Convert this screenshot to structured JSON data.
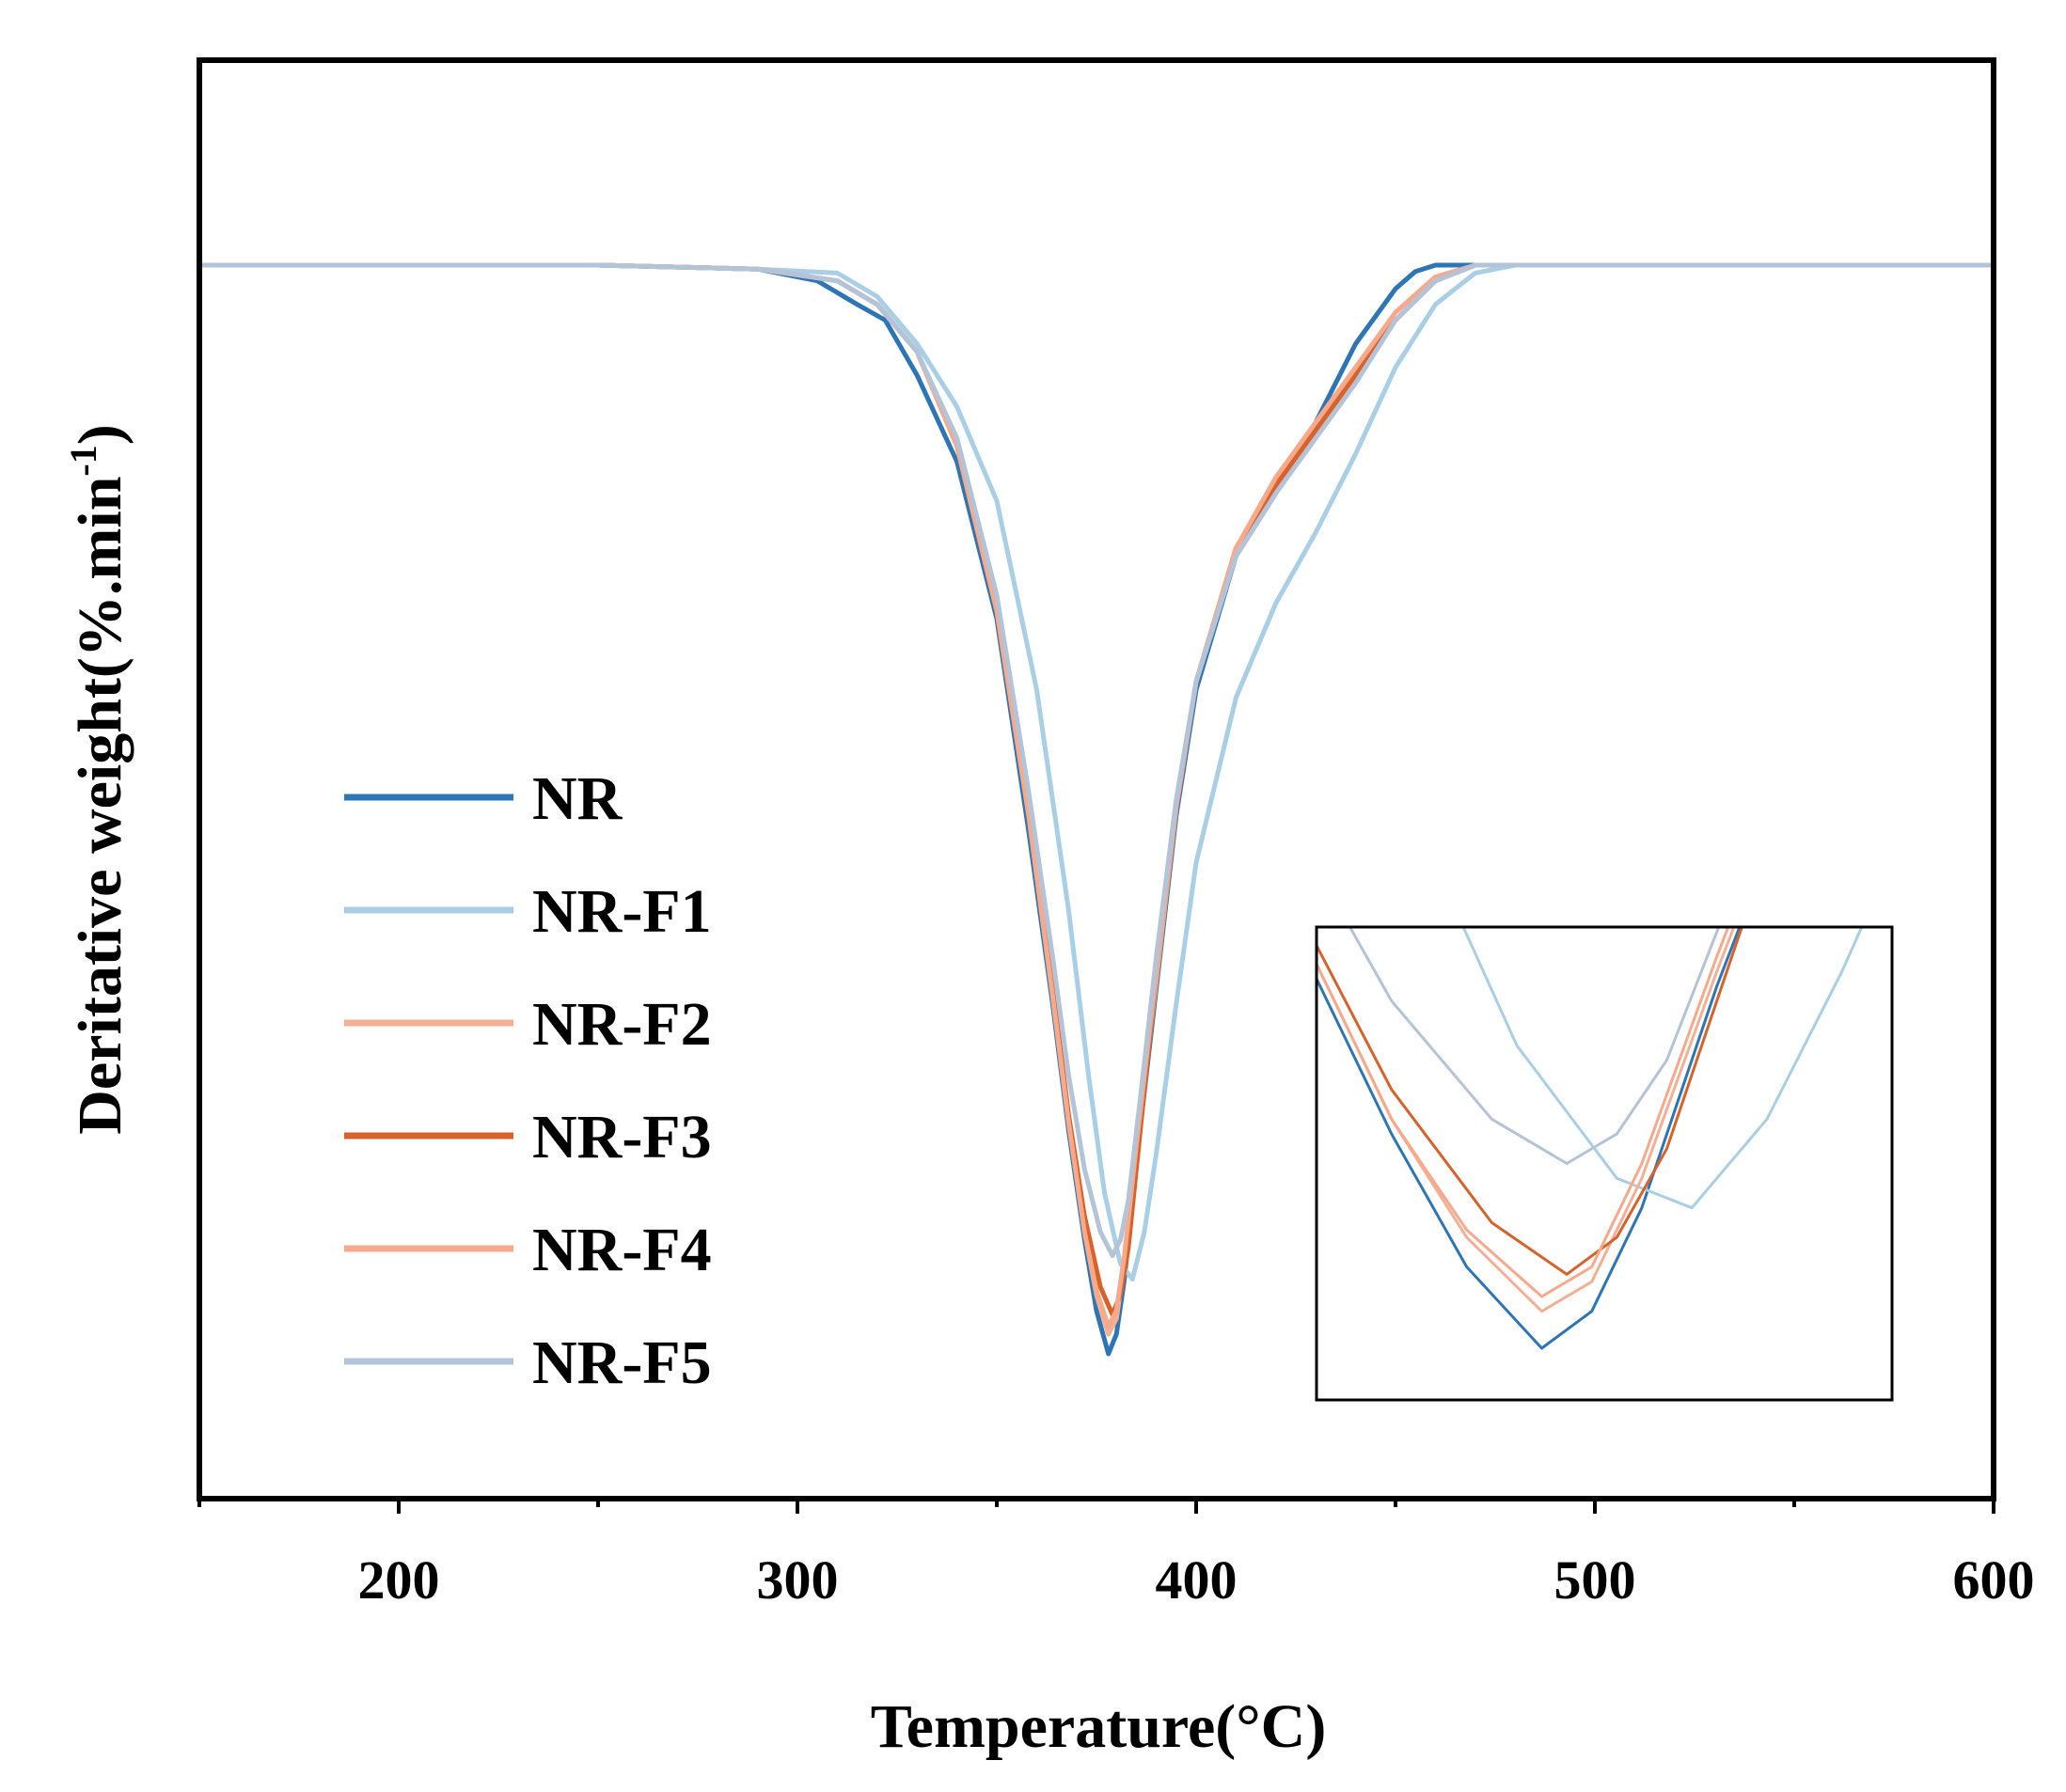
{
  "chart_data": {
    "type": "line",
    "xlabel": "Temperature(°C)",
    "ylabel_main": "Deritative weight(%.min",
    "ylabel_sup": "-1",
    "ylabel_close": ")",
    "xlim": [
      150,
      600
    ],
    "ylim": [
      -14,
      1.6
    ],
    "y_ticks_visible": false,
    "x_ticks": [
      200,
      300,
      400,
      500,
      600
    ],
    "x_tick_labels": [
      "200",
      "300",
      "400",
      "500",
      "600"
    ],
    "legend_position": "center-left",
    "inset": {
      "description_position": "bottom-right",
      "xlim": [
        369,
        392
      ],
      "ylim": [
        -14.2,
        -11.0
      ]
    },
    "series": [
      {
        "name": "NR",
        "color": "#2e75b6",
        "x": [
          150,
          200,
          250,
          290,
          305,
          315,
          322,
          330,
          340,
          350,
          358,
          364,
          368,
          372,
          375,
          378,
          380,
          382,
          385,
          390,
          395,
          400,
          410,
          420,
          430,
          440,
          450,
          455,
          460,
          470,
          480,
          500,
          550,
          600
        ],
        "y": [
          0,
          0,
          0,
          -0.05,
          -0.2,
          -0.5,
          -0.7,
          -1.4,
          -2.5,
          -4.5,
          -7.2,
          -9.4,
          -11.0,
          -12.4,
          -13.3,
          -13.85,
          -13.6,
          -12.9,
          -11.4,
          -9.2,
          -7.0,
          -5.4,
          -3.7,
          -2.9,
          -2.0,
          -1.0,
          -0.3,
          -0.08,
          0,
          0,
          0,
          0,
          0,
          0
        ]
      },
      {
        "name": "NR-F1",
        "color": "#a9cfe6",
        "x": [
          150,
          200,
          250,
          290,
          310,
          320,
          330,
          340,
          350,
          360,
          368,
          373,
          377,
          381,
          384,
          387,
          390,
          395,
          400,
          410,
          420,
          430,
          440,
          450,
          460,
          470,
          480,
          500,
          550,
          600
        ],
        "y": [
          0,
          0,
          0,
          -0.05,
          -0.1,
          -0.4,
          -1.0,
          -1.8,
          -3.0,
          -5.4,
          -8.2,
          -10.3,
          -11.8,
          -12.7,
          -12.9,
          -12.3,
          -11.3,
          -9.4,
          -7.6,
          -5.5,
          -4.3,
          -3.4,
          -2.4,
          -1.3,
          -0.5,
          -0.1,
          0,
          0,
          0,
          0
        ]
      },
      {
        "name": "NR-F2",
        "color": "#f4b094",
        "x": [
          150,
          200,
          250,
          290,
          310,
          320,
          330,
          340,
          350,
          358,
          364,
          368,
          372,
          375,
          378,
          380,
          382,
          385,
          390,
          395,
          400,
          410,
          420,
          430,
          440,
          450,
          460,
          470,
          480,
          500,
          550,
          600
        ],
        "y": [
          0,
          0,
          0,
          -0.05,
          -0.2,
          -0.5,
          -1.1,
          -2.3,
          -4.4,
          -7.0,
          -9.3,
          -10.9,
          -12.3,
          -13.1,
          -13.6,
          -13.4,
          -12.7,
          -11.3,
          -9.1,
          -6.9,
          -5.3,
          -3.6,
          -2.8,
          -2.1,
          -1.4,
          -0.7,
          -0.2,
          0,
          0,
          0,
          0,
          0
        ]
      },
      {
        "name": "NR-F3",
        "color": "#d9622b",
        "x": [
          150,
          200,
          250,
          290,
          310,
          320,
          330,
          340,
          350,
          358,
          364,
          368,
          372,
          376,
          379,
          381,
          383,
          386,
          390,
          395,
          400,
          410,
          420,
          430,
          440,
          450,
          460,
          470,
          480,
          500,
          550,
          600
        ],
        "y": [
          0,
          0,
          0,
          -0.05,
          -0.2,
          -0.5,
          -1.1,
          -2.3,
          -4.4,
          -7.0,
          -9.2,
          -10.8,
          -12.1,
          -13.0,
          -13.35,
          -13.1,
          -12.5,
          -11.0,
          -9.0,
          -6.9,
          -5.3,
          -3.6,
          -2.8,
          -2.1,
          -1.4,
          -0.7,
          -0.2,
          0,
          0,
          0,
          0,
          0
        ]
      },
      {
        "name": "NR-F4",
        "color": "#f7a98a",
        "x": [
          150,
          200,
          250,
          290,
          310,
          320,
          330,
          340,
          350,
          358,
          364,
          368,
          372,
          375,
          378,
          380,
          382,
          385,
          390,
          395,
          400,
          410,
          420,
          430,
          440,
          450,
          460,
          470,
          480,
          500,
          550,
          600
        ],
        "y": [
          0,
          0,
          0,
          -0.05,
          -0.2,
          -0.5,
          -1.1,
          -2.3,
          -4.4,
          -7.0,
          -9.3,
          -10.9,
          -12.3,
          -13.05,
          -13.5,
          -13.3,
          -12.6,
          -11.2,
          -9.0,
          -6.9,
          -5.3,
          -3.6,
          -2.7,
          -2.0,
          -1.3,
          -0.6,
          -0.15,
          0,
          0,
          0,
          0,
          0
        ]
      },
      {
        "name": "NR-F5",
        "color": "#b4c4d8",
        "x": [
          150,
          200,
          250,
          290,
          310,
          320,
          330,
          340,
          350,
          358,
          364,
          368,
          372,
          376,
          379,
          381,
          383,
          386,
          390,
          395,
          400,
          410,
          420,
          430,
          440,
          450,
          460,
          470,
          480,
          500,
          550,
          600
        ],
        "y": [
          0,
          0,
          0,
          -0.05,
          -0.2,
          -0.5,
          -1.1,
          -2.2,
          -4.2,
          -6.7,
          -8.8,
          -10.3,
          -11.5,
          -12.3,
          -12.6,
          -12.4,
          -11.9,
          -10.6,
          -8.8,
          -6.8,
          -5.3,
          -3.7,
          -2.9,
          -2.2,
          -1.5,
          -0.7,
          -0.2,
          0,
          0,
          0,
          0,
          0
        ]
      }
    ]
  }
}
